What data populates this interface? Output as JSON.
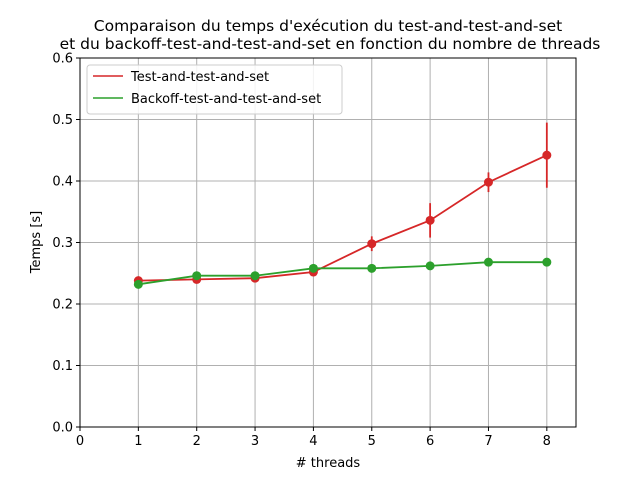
{
  "chart_data": {
    "type": "line",
    "title_lines": [
      "Comparaison du temps d'exécution du test-and-test-and-set",
      "et du backoff-test-and-test-and-set en fonction du nombre de threads"
    ],
    "xlabel": "# threads",
    "ylabel": "Temps [s]",
    "xlim": [
      0,
      8.5
    ],
    "ylim": [
      0,
      0.6
    ],
    "xticks": [
      0,
      1,
      2,
      3,
      4,
      5,
      6,
      7,
      8
    ],
    "yticks": [
      0.0,
      0.1,
      0.2,
      0.3,
      0.4,
      0.5,
      0.6
    ],
    "ytick_labels": [
      "0.0",
      "0.1",
      "0.2",
      "0.3",
      "0.4",
      "0.5",
      "0.6"
    ],
    "grid": true,
    "legend_position": "top-left",
    "series": [
      {
        "name": "Test-and-test-and-set",
        "color": "#d62728",
        "x": [
          1,
          2,
          3,
          4,
          5,
          6,
          7,
          8
        ],
        "y": [
          0.238,
          0.24,
          0.242,
          0.252,
          0.298,
          0.336,
          0.398,
          0.442
        ],
        "error": [
          0.004,
          0.004,
          0.004,
          0.006,
          0.012,
          0.028,
          0.016,
          0.053
        ]
      },
      {
        "name": "Backoff-test-and-test-and-set",
        "color": "#2ca02c",
        "x": [
          1,
          2,
          3,
          4,
          5,
          6,
          7,
          8
        ],
        "y": [
          0.232,
          0.246,
          0.246,
          0.258,
          0.258,
          0.262,
          0.268,
          0.268
        ],
        "error": [
          0.003,
          0.003,
          0.003,
          0.003,
          0.003,
          0.003,
          0.003,
          0.003
        ]
      }
    ]
  }
}
